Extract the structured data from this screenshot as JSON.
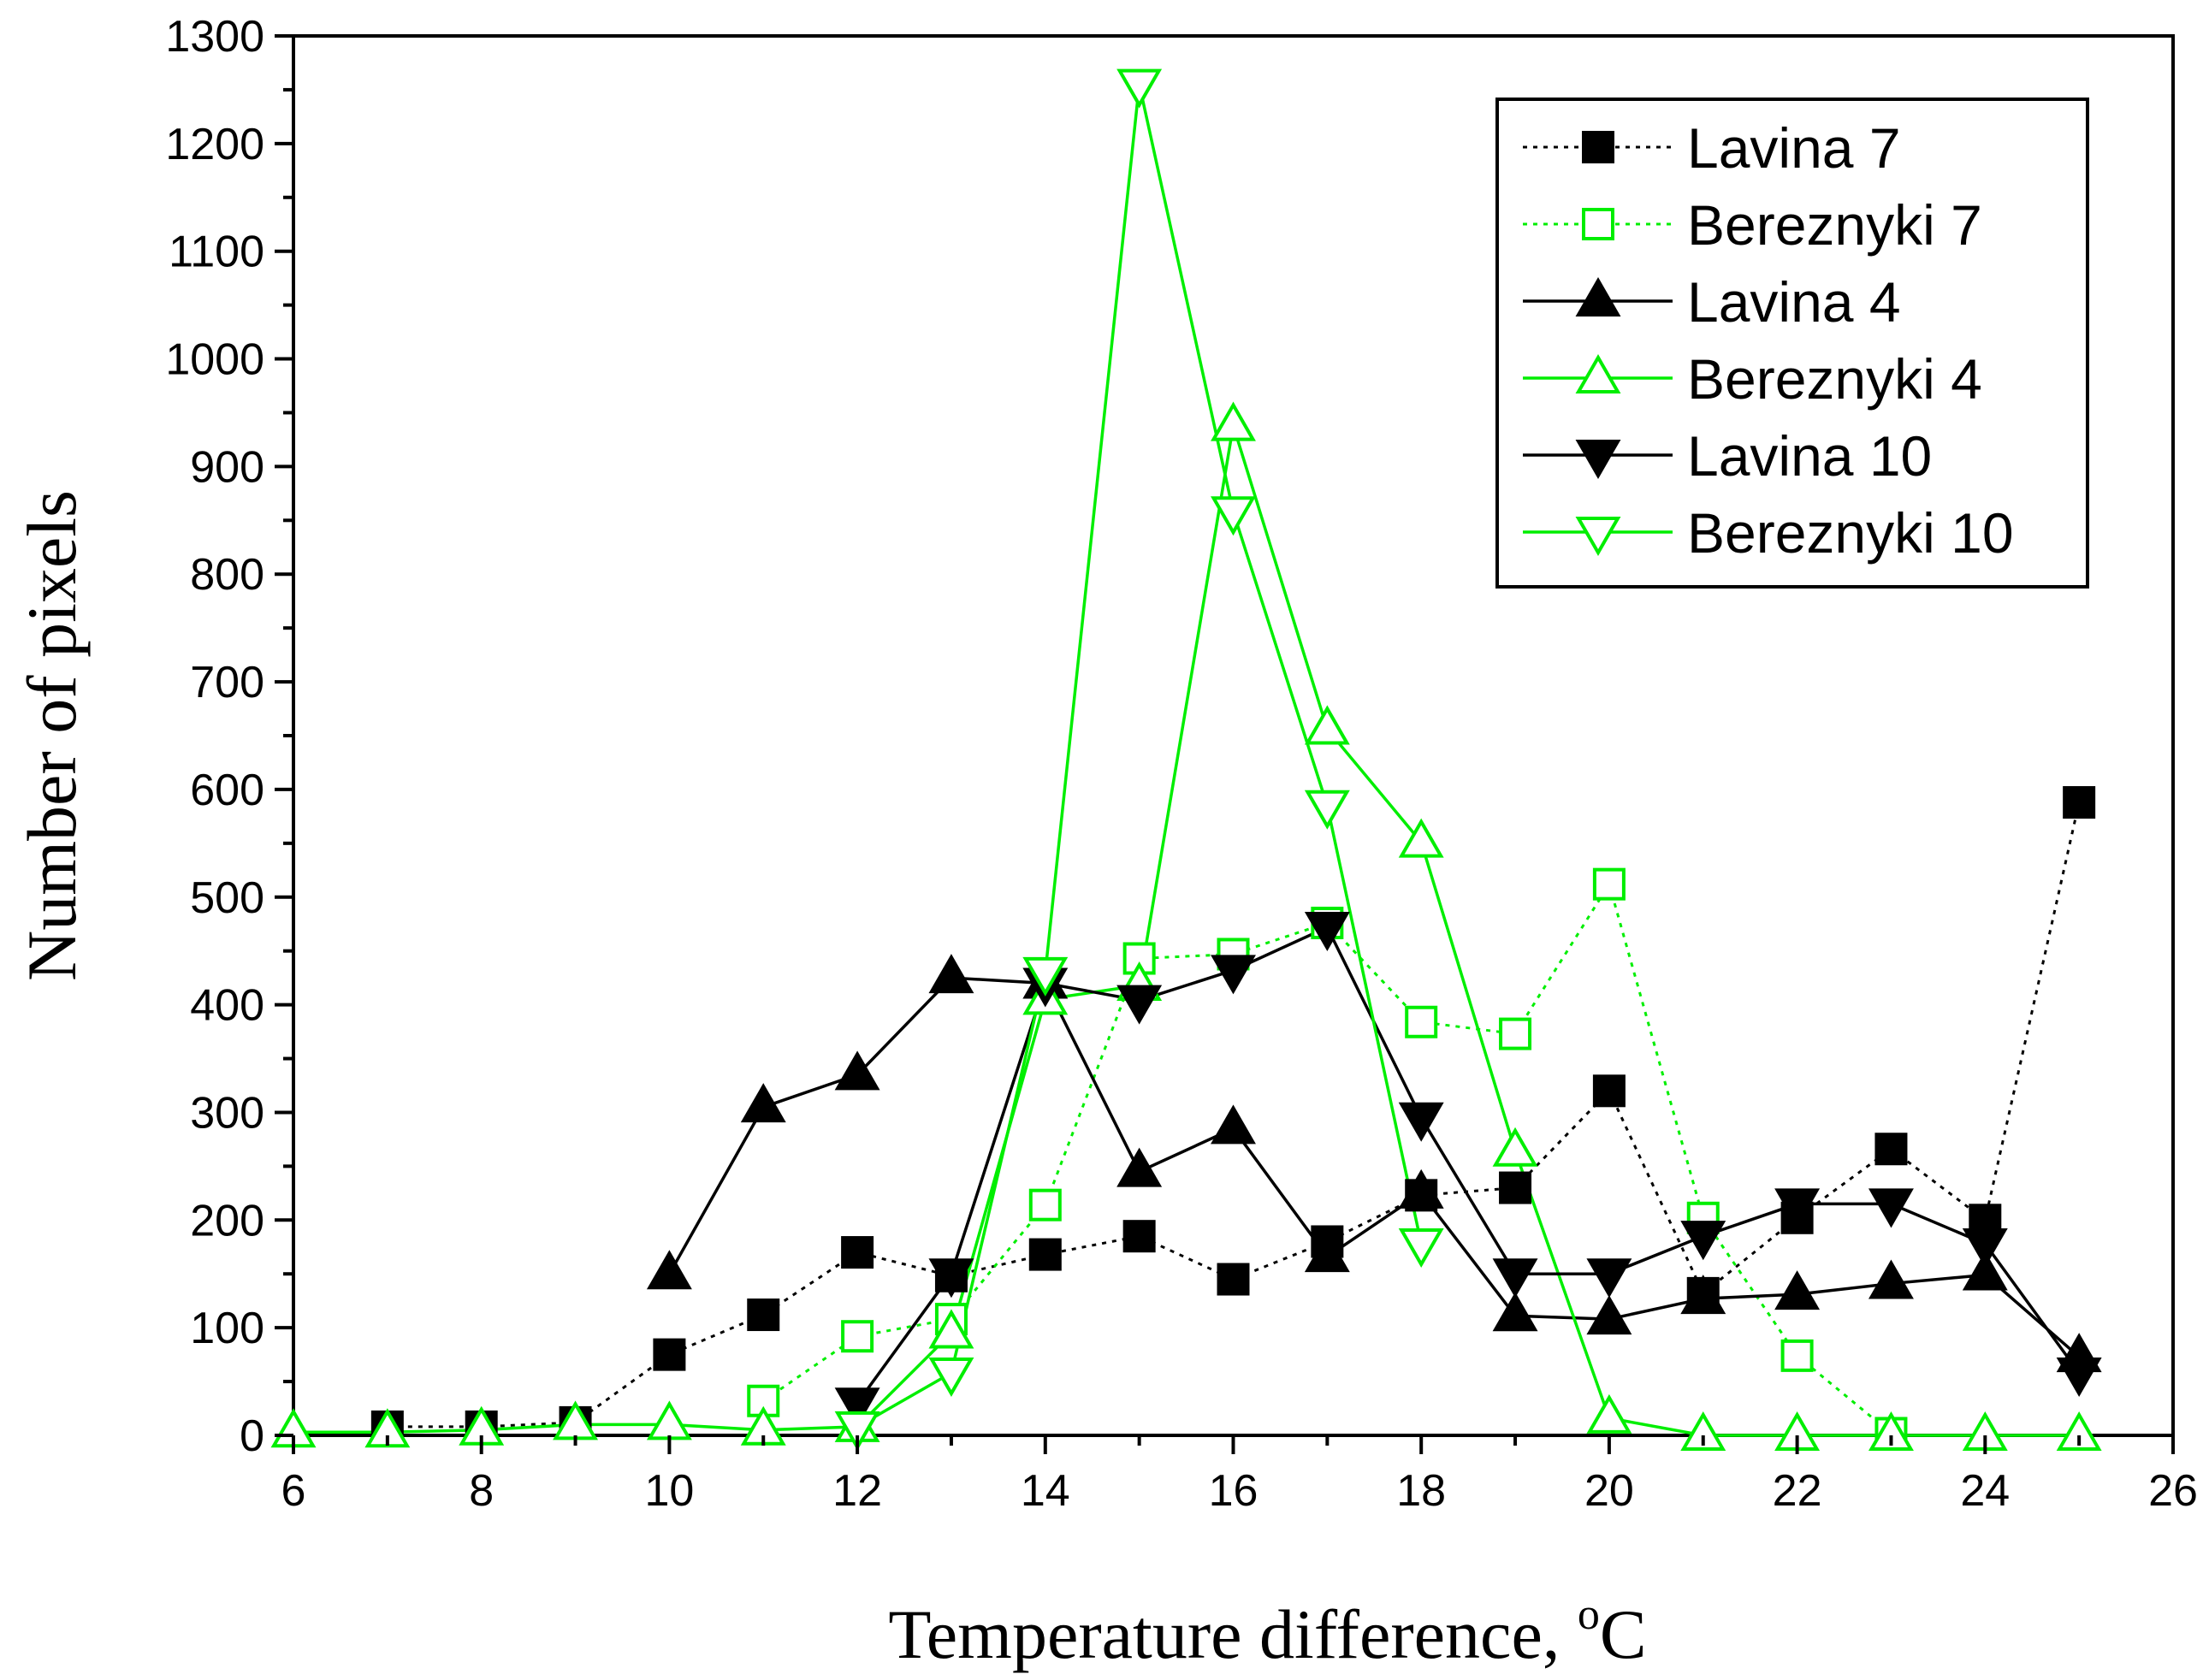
{
  "chart_data": {
    "type": "line",
    "title": "",
    "xlabel": "Temperature difference, ",
    "xlabel_unit_sup": "o",
    "xlabel_unit": "C",
    "ylabel": "Number of pixels",
    "xlim": [
      6,
      26
    ],
    "ylim": [
      0,
      1300
    ],
    "x_ticks": [
      6,
      8,
      10,
      12,
      14,
      16,
      18,
      20,
      22,
      24,
      26
    ],
    "y_ticks": [
      0,
      100,
      200,
      300,
      400,
      500,
      600,
      700,
      800,
      900,
      1000,
      1100,
      1200,
      1300
    ],
    "legend_position": "top-right",
    "series": [
      {
        "name": "Lavina 7",
        "color": "#000000",
        "line": "dotted",
        "marker": "square-filled",
        "x": [
          7,
          8,
          9,
          10,
          11,
          12,
          13,
          14,
          15,
          16,
          17,
          18,
          19,
          20,
          21,
          22,
          23,
          24,
          25
        ],
        "values": [
          8,
          8,
          12,
          75,
          112,
          170,
          148,
          168,
          185,
          145,
          180,
          223,
          230,
          320,
          132,
          202,
          266,
          200,
          588
        ]
      },
      {
        "name": "Bereznyki 7",
        "color": "#00ee00",
        "line": "dotted",
        "marker": "square-open",
        "x": [
          11,
          12,
          13,
          14,
          15,
          16,
          17,
          18,
          19,
          20,
          21,
          22,
          23
        ],
        "values": [
          32,
          92,
          108,
          214,
          443,
          447,
          476,
          384,
          373,
          512,
          202,
          74,
          2
        ]
      },
      {
        "name": "Lavina 4",
        "color": "#000000",
        "line": "solid",
        "marker": "triangle-up-filled",
        "x": [
          10,
          11,
          12,
          13,
          14,
          15,
          16,
          17,
          18,
          19,
          20,
          21,
          22,
          23,
          24,
          25
        ],
        "values": [
          150,
          305,
          335,
          425,
          420,
          245,
          285,
          166,
          225,
          111,
          108,
          127,
          131,
          141,
          149,
          73
        ]
      },
      {
        "name": "Bereznyki 4",
        "color": "#00ee00",
        "line": "solid",
        "marker": "triangle-up-open",
        "x": [
          6,
          7,
          8,
          9,
          10,
          11,
          12,
          13,
          14,
          15,
          16,
          17,
          18,
          19,
          20,
          21,
          22,
          23,
          24,
          25
        ],
        "values": [
          3,
          3,
          5,
          10,
          10,
          5,
          8,
          95,
          405,
          418,
          938,
          656,
          551,
          264,
          16,
          0,
          0,
          0,
          0,
          0
        ]
      },
      {
        "name": "Lavina 10",
        "color": "#000000",
        "line": "solid",
        "marker": "triangle-down-filled",
        "x": [
          12,
          13,
          14,
          15,
          16,
          17,
          18,
          19,
          20,
          21,
          22,
          23,
          24,
          25
        ],
        "values": [
          30,
          150,
          420,
          404,
          432,
          472,
          295,
          150,
          150,
          185,
          215,
          215,
          178,
          58
        ]
      },
      {
        "name": "Bereznyki 10",
        "color": "#00ee00",
        "line": "solid",
        "marker": "triangle-down-open",
        "x": [
          12,
          13,
          14,
          15,
          16,
          17,
          18
        ],
        "values": [
          8,
          58,
          430,
          1255,
          858,
          585,
          178
        ]
      }
    ]
  }
}
